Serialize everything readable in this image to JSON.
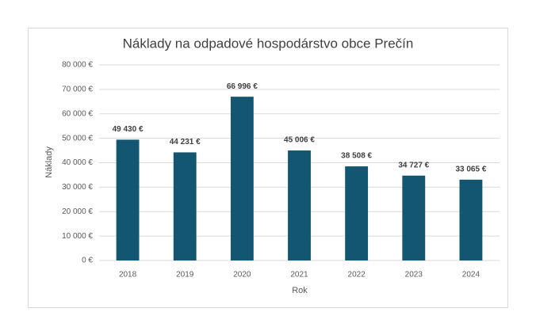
{
  "chart_data": {
    "type": "bar",
    "title": "Náklady na odpadové hospodárstvo obce Prečín",
    "x_label": "Rok",
    "y_label": "Náklady",
    "categories": [
      "2018",
      "2019",
      "2020",
      "2021",
      "2022",
      "2023",
      "2024"
    ],
    "values": [
      49430,
      44231,
      66996,
      45006,
      38508,
      34727,
      33065
    ],
    "value_labels": [
      "49 430 €",
      "44 231 €",
      "66 996 €",
      "45 006 €",
      "38 508 €",
      "34 727 €",
      "33 065 €"
    ],
    "color": "#135672",
    "ylim": [
      0,
      80000
    ],
    "yticks": [
      {
        "value": 0,
        "label": "0 €"
      },
      {
        "value": 10000,
        "label": "10 000 €"
      },
      {
        "value": 20000,
        "label": "20 000 €"
      },
      {
        "value": 30000,
        "label": "30 000 €"
      },
      {
        "value": 40000,
        "label": "40 000 €"
      },
      {
        "value": 50000,
        "label": "50 000 €"
      },
      {
        "value": 60000,
        "label": "60 000 €"
      },
      {
        "value": 70000,
        "label": "70 000 €"
      },
      {
        "value": 80000,
        "label": "80 000 €"
      }
    ],
    "grid": true
  }
}
